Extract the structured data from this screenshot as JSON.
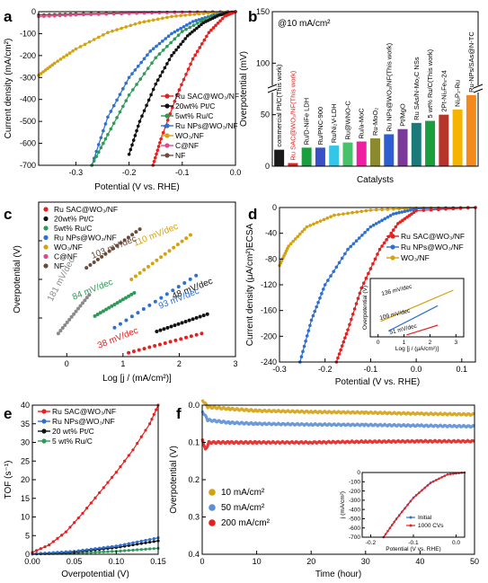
{
  "chart_data": [
    {
      "id": "a",
      "type": "line",
      "panel_label": "a",
      "xlabel": "Potential (V vs. RHE)",
      "ylabel": "Current density (mA/cm²)",
      "xlim": [
        -0.37,
        0.0
      ],
      "ylim": [
        -700,
        0
      ],
      "xticks": [
        -0.3,
        -0.2,
        -0.1,
        0.0
      ],
      "xtick_labels": [
        "-0.3",
        "-0.2",
        "-0.1",
        "0.0"
      ],
      "yticks": [
        0,
        -100,
        -200,
        -300,
        -400,
        -500,
        -600,
        -700
      ],
      "ytick_labels": [
        "0",
        "-100",
        "-200",
        "-300",
        "-400",
        "-500",
        "-600",
        "-700"
      ],
      "legend_position": "right",
      "series": [
        {
          "name": "Ru SAC@WO₃/NF",
          "color": "#e5201f",
          "x": [
            0.0,
            -0.02,
            -0.05,
            -0.08,
            -0.11,
            -0.14,
            -0.155
          ],
          "y": [
            0,
            -20,
            -95,
            -215,
            -380,
            -580,
            -700
          ]
        },
        {
          "name": "20wt% Pt/C",
          "color": "#111111",
          "x": [
            0.0,
            -0.03,
            -0.06,
            -0.09,
            -0.12,
            -0.15,
            -0.18,
            -0.2
          ],
          "y": [
            0,
            -15,
            -50,
            -110,
            -200,
            -330,
            -500,
            -650
          ]
        },
        {
          "name": "5wt% Ru/C",
          "color": "#2e9a57",
          "x": [
            0.0,
            -0.05,
            -0.1,
            -0.15,
            -0.2,
            -0.24,
            -0.27
          ],
          "y": [
            0,
            -25,
            -90,
            -210,
            -380,
            -560,
            -700
          ]
        },
        {
          "name": "Ru NPs@WO₃/NF",
          "color": "#2e6fd0",
          "x": [
            0.0,
            -0.04,
            -0.08,
            -0.12,
            -0.16,
            -0.2,
            -0.24,
            -0.27
          ],
          "y": [
            0,
            -15,
            -45,
            -100,
            -180,
            -300,
            -480,
            -700
          ]
        },
        {
          "name": "WO₃/NF",
          "color": "#d4a10f",
          "x": [
            0.0,
            -0.06,
            -0.12,
            -0.18,
            -0.24,
            -0.3,
            -0.34,
            -0.37
          ],
          "y": [
            0,
            -8,
            -22,
            -50,
            -95,
            -170,
            -235,
            -290
          ]
        },
        {
          "name": "C@NF",
          "color": "#e2478c",
          "x": [
            0.0,
            -0.1,
            -0.2,
            -0.3,
            -0.37
          ],
          "y": [
            0,
            -3,
            -8,
            -15,
            -22
          ]
        },
        {
          "name": "NF",
          "color": "#6b4a3a",
          "x": [
            0.0,
            -0.1,
            -0.2,
            -0.3,
            -0.37
          ],
          "y": [
            0,
            -2,
            -5,
            -10,
            -15
          ]
        }
      ]
    },
    {
      "id": "b",
      "type": "bar",
      "panel_label": "b",
      "annotation": "@10 mA/cm²",
      "xlabel": "Catalysts",
      "ylabel": "Overpotential (mV)",
      "ylim": [
        0,
        150
      ],
      "yticks": [
        0,
        50,
        100,
        150
      ],
      "ytick_labels": [
        "0",
        "50",
        "100",
        "150"
      ],
      "axis_break": true,
      "categories": [
        "commercial Pt/C(This work)",
        "Ru SAC@WO₃/NF(This work)",
        "Ru/D-NiFe LDH",
        "Ru/PNC-900",
        "Ru/Ni₂V-LDH",
        "Ru@WNO-C",
        "Ru/a-MoC",
        "Ru-MoO₂",
        "Ru NPs@WO₃/NF(This work)",
        "Pt/MgO",
        "Ru SAs/N-Mo₂C NSs",
        "5 wt% Ru/C(This work)",
        "2Pt-Ni₂Fe₈-24",
        "Ni₂P₂-Ru",
        "Ru-NPs/SAs@N-TC"
      ],
      "values": [
        16,
        3,
        18,
        18,
        20,
        23,
        24,
        27,
        31,
        36,
        42,
        44,
        50,
        55,
        69
      ],
      "colors": [
        "#1a1a1a",
        "#e5201f",
        "#1b9e3e",
        "#3a50c8",
        "#33c6e8",
        "#45c26a",
        "#f01ea3",
        "#8b8a2e",
        "#2e5fd0",
        "#7b3a9a",
        "#1a7a7a",
        "#1b9e3e",
        "#b5352a",
        "#f5b400",
        "#f58a1c"
      ],
      "label_colors": [
        "#000000",
        "#e5201f",
        "#000000",
        "#000000",
        "#000000",
        "#000000",
        "#000000",
        "#000000",
        "#000000",
        "#000000",
        "#000000",
        "#000000",
        "#000000",
        "#000000",
        "#000000"
      ]
    },
    {
      "id": "c",
      "type": "scatter",
      "panel_label": "c",
      "xlabel": "Log [j / (mA/cm²)]",
      "ylabel": "Overpotential (V)",
      "xlim": [
        -0.5,
        3
      ],
      "ylim": [
        0,
        0.4
      ],
      "xticks": [
        0,
        1,
        2,
        3
      ],
      "xtick_labels": [
        "0",
        "1",
        "2",
        "3"
      ],
      "legend_position": "top-left",
      "series": [
        {
          "name": "Ru SAC@WO₃/NF",
          "color": "#e5201f",
          "slope_label": "38 mV/dec",
          "x": [
            1.1,
            2.4
          ],
          "y": [
            0.01,
            0.06
          ]
        },
        {
          "name": "20wt% Pt/C",
          "color": "#111111",
          "slope_label": "48 mV/dec",
          "x": [
            1.6,
            2.5
          ],
          "y": [
            0.065,
            0.11
          ]
        },
        {
          "name": "5wt% Ru/C",
          "color": "#2e9a57",
          "slope_label": "84 mV/dec",
          "x": [
            0.5,
            1.2
          ],
          "y": [
            0.105,
            0.165
          ]
        },
        {
          "name": "Ru NPs@WO₃/NF",
          "color": "#2e6fd0",
          "slope_label": "93 mV/dec",
          "x": [
            0.85,
            2.3
          ],
          "y": [
            0.075,
            0.21
          ]
        },
        {
          "name": "WO₃/NF",
          "color": "#d4a10f",
          "slope_label": "110 mV/dec",
          "x": [
            1.15,
            2.2
          ],
          "y": [
            0.2,
            0.315
          ]
        },
        {
          "name": "C@NF",
          "color": "#e2478c",
          "slope_label": "",
          "x": [],
          "y": []
        },
        {
          "name": "NF",
          "color": "#6b4a3a",
          "slope_label": "103 mV/dec",
          "x": [
            0.35,
            1.3
          ],
          "y": [
            0.23,
            0.33
          ]
        },
        {
          "name": "",
          "color": "#8a8a8a",
          "slope_label": "181 mV/dec",
          "x": [
            -0.15,
            0.4
          ],
          "y": [
            0.06,
            0.16
          ]
        }
      ]
    },
    {
      "id": "d",
      "type": "line",
      "panel_label": "d",
      "xlabel": "Potential (V vs. RHE)",
      "ylabel": "Current density (μA/cm²)ECSA",
      "xlim": [
        -0.3,
        0.13
      ],
      "ylim": [
        -240,
        0
      ],
      "xticks": [
        -0.3,
        -0.2,
        -0.1,
        0.0,
        0.1
      ],
      "xtick_labels": [
        "-0.3",
        "-0.2",
        "-0.1",
        "0.0",
        "0.1"
      ],
      "yticks": [
        0,
        -40,
        -80,
        -120,
        -160,
        -200,
        -240
      ],
      "ytick_labels": [
        "0",
        "-40",
        "-80",
        "-120",
        "-160",
        "-200",
        "-240"
      ],
      "legend_position": "top-right",
      "series": [
        {
          "name": "Ru SAC@WO₃/NF",
          "color": "#e5201f",
          "x": [
            0.13,
            0.0,
            -0.04,
            -0.08,
            -0.12,
            -0.15,
            -0.175
          ],
          "y": [
            0,
            -5,
            -25,
            -65,
            -125,
            -190,
            -240
          ]
        },
        {
          "name": "Ru NPs@WO₃/NF",
          "color": "#2e6fd0",
          "x": [
            0.13,
            0.0,
            -0.05,
            -0.1,
            -0.15,
            -0.2,
            -0.23,
            -0.255
          ],
          "y": [
            0,
            -2,
            -10,
            -30,
            -65,
            -120,
            -175,
            -240
          ]
        },
        {
          "name": "WO₃/NF",
          "color": "#d4a10f",
          "x": [
            0.13,
            0.0,
            -0.1,
            -0.18,
            -0.24,
            -0.28,
            -0.3
          ],
          "y": [
            0,
            -1,
            -4,
            -12,
            -30,
            -60,
            -90
          ]
        }
      ],
      "inset": {
        "xlabel": "Log [j / (μA/cm²)]",
        "ylabel": "Overpotential (V)",
        "xticks": [
          0,
          1,
          2,
          3
        ],
        "xtick_labels": [
          "0",
          "1",
          "2",
          "3"
        ],
        "xlim": [
          -0.3,
          3.3
        ],
        "ylim": [
          0,
          0.3
        ],
        "series": [
          {
            "color": "#d4a10f",
            "label": "136 mV/dec",
            "x": [
              0.1,
              2.9
            ],
            "y": [
              0.08,
              0.24
            ]
          },
          {
            "color": "#2e6fd0",
            "label": "109 mV/dec",
            "x": [
              0.4,
              2.3
            ],
            "y": [
              0.03,
              0.16
            ]
          },
          {
            "color": "#e5201f",
            "label": "51 mV/dec",
            "x": [
              1.1,
              2.3
            ],
            "y": [
              0.01,
              0.06
            ]
          }
        ]
      }
    },
    {
      "id": "e",
      "type": "line",
      "panel_label": "e",
      "xlabel": "Overpotential (V)",
      "ylabel": "TOF (s⁻¹)",
      "xlim": [
        0,
        0.15
      ],
      "ylim": [
        0,
        40
      ],
      "xticks": [
        0,
        0.05,
        0.1,
        0.15
      ],
      "xtick_labels": [
        "0.00",
        "0.05",
        "0.10",
        "0.15"
      ],
      "yticks": [
        0,
        5,
        10,
        15,
        20,
        25,
        30,
        35,
        40
      ],
      "ytick_labels": [
        "0",
        "5",
        "10",
        "15",
        "20",
        "25",
        "30",
        "35",
        "40"
      ],
      "legend_position": "top-left",
      "series": [
        {
          "name": "Ru SAC@WO₃/NF",
          "color": "#e5201f",
          "x": [
            0,
            0.02,
            0.04,
            0.06,
            0.08,
            0.1,
            0.12,
            0.14,
            0.15
          ],
          "y": [
            0.5,
            2.5,
            6,
            11,
            16.5,
            22,
            28,
            35,
            40
          ]
        },
        {
          "name": "Ru NPs@WO₃/NF",
          "color": "#2e6fd0",
          "x": [
            0,
            0.05,
            0.1,
            0.15
          ],
          "y": [
            0.1,
            0.8,
            2.2,
            4.4
          ]
        },
        {
          "name": "20 wt% Pt/C",
          "color": "#111111",
          "x": [
            0,
            0.05,
            0.1,
            0.15
          ],
          "y": [
            0.1,
            0.6,
            1.8,
            3.6
          ]
        },
        {
          "name": "5 wt% Ru/C",
          "color": "#2e9a57",
          "x": [
            0,
            0.05,
            0.1,
            0.15
          ],
          "y": [
            0.05,
            0.3,
            0.8,
            1.6
          ]
        }
      ]
    },
    {
      "id": "f",
      "type": "line",
      "panel_label": "f",
      "xlabel": "Time (hour)",
      "ylabel": "Overpotential (V)",
      "xlim": [
        0,
        50
      ],
      "ylim": [
        0,
        0.4
      ],
      "xticks": [
        0,
        10,
        20,
        30,
        40,
        50
      ],
      "xtick_labels": [
        "0",
        "10",
        "20",
        "30",
        "40",
        "50"
      ],
      "yticks": [
        0,
        0.1,
        0.2,
        0.3,
        0.4
      ],
      "ytick_labels": [
        "0.0",
        "0.1",
        "0.2",
        "0.3",
        "0.4"
      ],
      "legend_position": "bottom-left",
      "series": [
        {
          "name": "10 mA/cm²",
          "color": "#d4a10f",
          "x": [
            0,
            1,
            5,
            10,
            20,
            30,
            40,
            50
          ],
          "y": [
            -0.015,
            0.005,
            0.01,
            0.015,
            0.018,
            0.02,
            0.023,
            0.025
          ]
        },
        {
          "name": "50 mA/cm²",
          "color": "#5b8fd6",
          "x": [
            0,
            1,
            5,
            10,
            20,
            30,
            40,
            50
          ],
          "y": [
            0.015,
            0.04,
            0.047,
            0.05,
            0.052,
            0.053,
            0.055,
            0.057
          ]
        },
        {
          "name": "200 mA/cm²",
          "color": "#e5201f",
          "x": [
            0,
            0.6,
            1.2,
            5,
            10,
            20,
            30,
            40,
            50
          ],
          "y": [
            0.09,
            0.12,
            0.1,
            0.1,
            0.1,
            0.1,
            0.098,
            0.097,
            0.097
          ]
        }
      ],
      "inset": {
        "xlabel": "Potential (V vs. RHE)",
        "ylabel": "j (mA/cm²)",
        "xticks": [
          -0.2,
          -0.1,
          0.0
        ],
        "xtick_labels": [
          "-0.2",
          "-0.1",
          "0.0"
        ],
        "yticks": [
          0,
          -100,
          -200,
          -300,
          -400,
          -500,
          -600,
          -700
        ],
        "ytick_labels": [
          "0",
          "-100",
          "-200",
          "-300",
          "-400",
          "-500",
          "-600",
          "-700"
        ],
        "xlim": [
          -0.22,
          0.02
        ],
        "ylim": [
          -700,
          0
        ],
        "series": [
          {
            "name": "Initial",
            "color": "#2e6fd0",
            "x": [
              0.02,
              -0.02,
              -0.06,
              -0.1,
              -0.14,
              -0.17
            ],
            "y": [
              0,
              -20,
              -110,
              -270,
              -500,
              -700
            ]
          },
          {
            "name": "1000 CVs",
            "color": "#e5201f",
            "x": [
              0.02,
              -0.02,
              -0.06,
              -0.1,
              -0.14,
              -0.17
            ],
            "y": [
              0,
              -22,
              -115,
              -275,
              -505,
              -700
            ]
          }
        ]
      }
    }
  ]
}
